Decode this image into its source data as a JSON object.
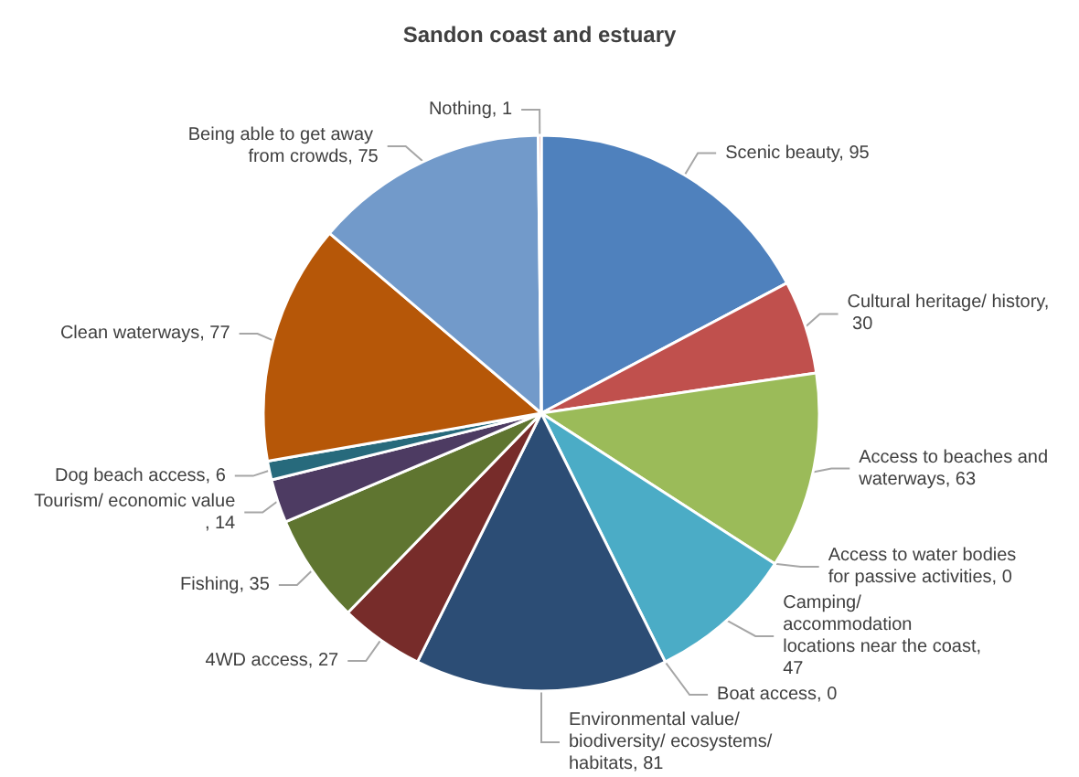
{
  "chart_data": {
    "type": "pie",
    "title": "Sandon coast and estuary",
    "categories": [
      null,
      null,
      null,
      null,
      null,
      null,
      null,
      null,
      null,
      null,
      null,
      null,
      null,
      null
    ],
    "values": [
      95,
      30,
      63,
      0,
      47,
      0,
      81,
      27,
      35,
      14,
      6,
      77,
      75,
      1
    ],
    "value_labels": [
      "Scenic beauty, 95",
      "Cultural heritage/ history, 30",
      "Access to beaches and waterways, 63",
      "Access to water bodies for passive activities, 0",
      "Camping/ accommodation locations near the coast, 47",
      "Boat access, 0",
      "Environmental value/biodiversity/ ecosystems/habitats, 81",
      "4WD access, 27",
      "Fishing, 35",
      "Tourism/ economic value, 14",
      "Dog beach access, 6",
      "Clean waterways, 77",
      "Being able to get away from crowds, 75",
      "Nothing, 1"
    ],
    "colors": [
      "#4f81bd",
      "#c0504d",
      "#9bbb59",
      "#8064a2",
      "#4bacc6",
      "#f79646",
      "#2c4d75",
      "#772c2a",
      "#5f7530",
      "#4d3b62",
      "#276a7c",
      "#b65708",
      "#729aca",
      "#d4726f"
    ]
  }
}
